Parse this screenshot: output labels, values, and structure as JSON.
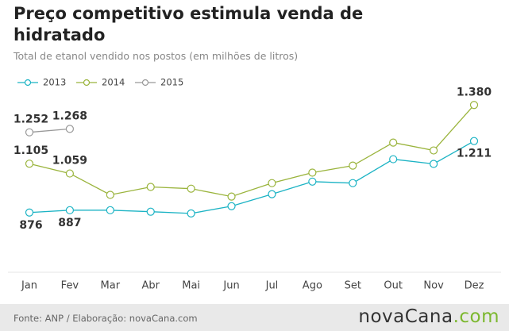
{
  "chart_data": {
    "type": "line",
    "title": "Preço competitivo estimula venda de hidratado",
    "subtitle": "Total de etanol vendido nos postos (em milhões de litros)",
    "categories": [
      "Jan",
      "Fev",
      "Mar",
      "Abr",
      "Mai",
      "Jun",
      "Jul",
      "Ago",
      "Set",
      "Out",
      "Nov",
      "Dez"
    ],
    "series": [
      {
        "name": "2013",
        "color": "#1bb3c4",
        "values": [
          876,
          887,
          887,
          880,
          872,
          906,
          962,
          1021,
          1014,
          1126,
          1104,
          1211
        ],
        "value_labels": [
          "876",
          "887",
          null,
          null,
          null,
          null,
          null,
          null,
          null,
          null,
          null,
          "1.211"
        ]
      },
      {
        "name": "2014",
        "color": "#9ab43c",
        "values": [
          1105,
          1059,
          959,
          996,
          988,
          951,
          1014,
          1063,
          1096,
          1204,
          1167,
          1380
        ],
        "value_labels": [
          "1.105",
          "1.059",
          null,
          null,
          null,
          null,
          null,
          null,
          null,
          null,
          null,
          "1.380"
        ]
      },
      {
        "name": "2015",
        "color": "#999999",
        "values": [
          1252,
          1268,
          null,
          null,
          null,
          null,
          null,
          null,
          null,
          null,
          null,
          null
        ],
        "value_labels": [
          "1.252",
          "1.268",
          null,
          null,
          null,
          null,
          null,
          null,
          null,
          null,
          null,
          null
        ]
      }
    ],
    "ylim": [
      600,
      1500
    ],
    "source": "Fonte: ANP / Elaboração: novaCana.com",
    "logo": "novaCana",
    "logo_suffix": ".com"
  }
}
